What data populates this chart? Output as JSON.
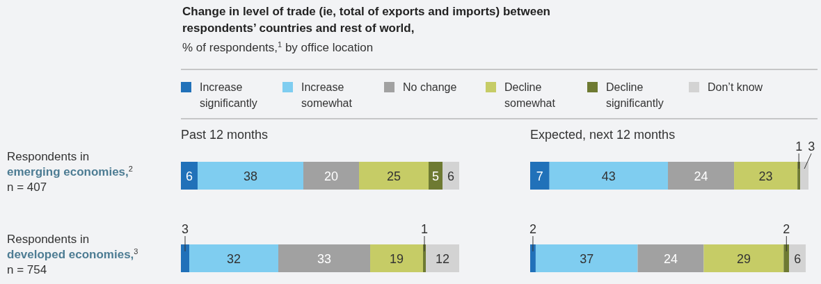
{
  "chart_data": [
    {
      "type": "bar",
      "orientation": "horizontal",
      "stacked": true,
      "title": "Change in level of trade (ie, total of exports and imports) between respondents’ countries and rest of world,",
      "subtitle": "% of respondents,$^{1}$ by office location",
      "annotations": [
        "Past 12 months"
      ],
      "categories": [
        "Respondents in\nemerging economies,$^{2}$\nn = 407",
        "Respondents in\ndeveloped economies,$^{3}$\nn = 754"
      ],
      "data_labels": true,
      "legend": "top",
      "series": [
        {
          "name": "Increase significantly",
          "color": "#2171b9",
          "values": [
            6,
            3
          ]
        },
        {
          "name": "Increase somewhat",
          "color": "#7fcdf0",
          "values": [
            38,
            32
          ]
        },
        {
          "name": "No change",
          "color": "#a1a1a1",
          "values": [
            20,
            33
          ]
        },
        {
          "name": "Decline somewhat",
          "color": "#c6cc66",
          "values": [
            25,
            19
          ]
        },
        {
          "name": "Decline significantly",
          "color": "#6e7a32",
          "values": [
            5,
            1
          ]
        },
        {
          "name": "Don’t know",
          "color": "#d3d3d3",
          "values": [
            6,
            12
          ]
        }
      ]
    },
    {
      "type": "bar",
      "orientation": "horizontal",
      "stacked": true,
      "title": "Expected, next 12 months",
      "categories": [
        null,
        null
      ],
      "data_labels": true,
      "series": [
        {
          "color": "#2171b9",
          "values": [
            7,
            2
          ]
        },
        {
          "color": "#7fcdf0",
          "values": [
            43,
            37
          ]
        },
        {
          "color": "#a1a1a1",
          "values": [
            24,
            24
          ]
        },
        {
          "color": "#c6cc66",
          "values": [
            23,
            29
          ]
        },
        {
          "color": "#6e7a32",
          "values": [
            1,
            2
          ]
        },
        {
          "color": "#d3d3d3",
          "values": [
            3,
            6
          ]
        }
      ]
    }
  ]
}
